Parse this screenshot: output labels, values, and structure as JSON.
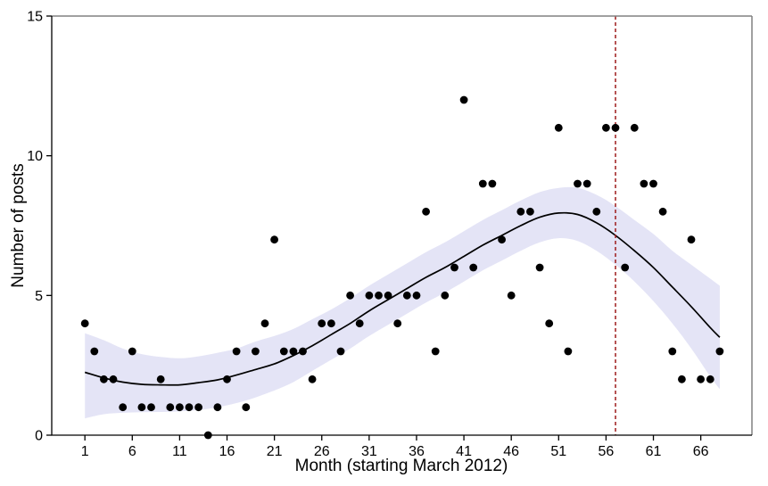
{
  "chart_data": {
    "type": "scatter",
    "title": "",
    "xlabel": "Month (starting March 2012)",
    "ylabel": "Number of posts",
    "xlim": [
      -2.5,
      71.4
    ],
    "ylim": [
      0,
      15
    ],
    "x_ticks": [
      1,
      6,
      11,
      16,
      21,
      26,
      31,
      36,
      41,
      46,
      51,
      56,
      61,
      66
    ],
    "y_ticks": [
      0,
      5,
      10,
      15
    ],
    "grid": "off",
    "legend": "none",
    "points": {
      "x": [
        1,
        2,
        3,
        4,
        5,
        6,
        7,
        8,
        9,
        10,
        11,
        12,
        13,
        14,
        15,
        16,
        17,
        18,
        19,
        20,
        21,
        22,
        23,
        24,
        25,
        26,
        27,
        28,
        29,
        30,
        31,
        32,
        33,
        34,
        35,
        36,
        37,
        38,
        39,
        40,
        41,
        42,
        43,
        44,
        45,
        46,
        47,
        48,
        49,
        50,
        51,
        52,
        53,
        54,
        55,
        56,
        57,
        58,
        59,
        60,
        61,
        62,
        63,
        64,
        65,
        66,
        67,
        68
      ],
      "y": [
        4,
        3,
        2,
        2,
        1,
        3,
        1,
        1,
        2,
        1,
        1,
        1,
        1,
        0,
        1,
        2,
        3,
        1,
        3,
        4,
        7,
        3,
        3,
        3,
        2,
        4,
        4,
        3,
        5,
        4,
        5,
        5,
        5,
        4,
        5,
        5,
        8,
        3,
        5,
        6,
        12,
        6,
        9,
        9,
        7,
        5,
        8,
        8,
        6,
        4,
        11,
        3,
        9,
        9,
        8,
        11,
        11,
        6,
        11,
        9,
        9,
        8,
        3,
        2,
        7,
        2,
        2,
        3
      ]
    },
    "smooth": {
      "x": [
        1,
        3,
        5,
        7,
        9,
        11,
        13,
        15,
        17,
        19,
        21,
        23,
        25,
        27,
        29,
        31,
        33,
        35,
        37,
        39,
        41,
        43,
        45,
        47,
        49,
        51,
        53,
        55,
        57,
        59,
        61,
        63,
        65,
        67,
        68
      ],
      "fit": [
        2.25,
        2.05,
        1.9,
        1.82,
        1.8,
        1.8,
        1.88,
        1.98,
        2.15,
        2.35,
        2.55,
        2.85,
        3.2,
        3.6,
        4.0,
        4.45,
        4.85,
        5.25,
        5.65,
        6.0,
        6.4,
        6.8,
        7.15,
        7.5,
        7.8,
        7.95,
        7.9,
        7.6,
        7.15,
        6.6,
        6.0,
        5.3,
        4.6,
        3.85,
        3.5
      ],
      "lower": [
        0.6,
        0.75,
        0.8,
        0.82,
        0.83,
        0.85,
        0.9,
        1.0,
        1.15,
        1.35,
        1.6,
        1.9,
        2.3,
        2.7,
        3.1,
        3.55,
        3.95,
        4.35,
        4.75,
        5.1,
        5.5,
        5.9,
        6.25,
        6.6,
        6.9,
        7.05,
        6.95,
        6.6,
        6.1,
        5.5,
        4.8,
        4.0,
        3.1,
        2.1,
        1.65
      ],
      "upper": [
        3.65,
        3.4,
        3.1,
        2.9,
        2.8,
        2.75,
        2.82,
        2.95,
        3.1,
        3.35,
        3.55,
        3.8,
        4.15,
        4.5,
        4.9,
        5.35,
        5.75,
        6.15,
        6.55,
        6.9,
        7.3,
        7.7,
        8.05,
        8.4,
        8.7,
        8.85,
        8.85,
        8.6,
        8.2,
        7.7,
        7.2,
        6.6,
        6.1,
        5.6,
        5.35
      ]
    },
    "vline": {
      "x": 57,
      "style": "dashed",
      "color": "#9E1B1B"
    },
    "colors": {
      "point": "#000000",
      "smooth_line": "#000000",
      "band": "#E4E4F6",
      "panel_border": "#808080",
      "axis_line": "#000000",
      "text": "#000000",
      "background": "#FFFFFF"
    }
  }
}
